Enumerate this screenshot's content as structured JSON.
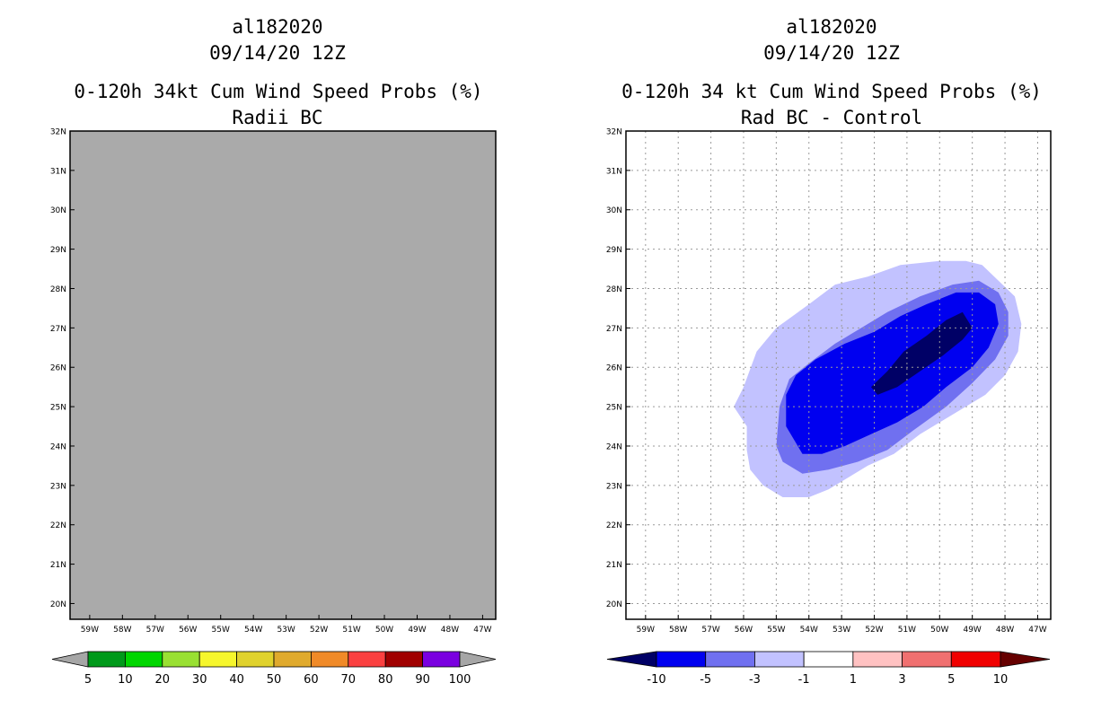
{
  "chart_data": [
    {
      "type": "map",
      "storm_id": "al182020",
      "datetime": "09/14/20 12Z",
      "title": "0-120h 34kt Cum Wind Speed Probs (%)",
      "subtitle": "Radii BC",
      "xlim": [
        -59.6,
        -46.6
      ],
      "ylim": [
        19.6,
        32
      ],
      "x_ticks": [
        {
          "lon": -59,
          "label": "59W"
        },
        {
          "lon": -58,
          "label": "58W"
        },
        {
          "lon": -57,
          "label": "57W"
        },
        {
          "lon": -56,
          "label": "56W"
        },
        {
          "lon": -55,
          "label": "55W"
        },
        {
          "lon": -54,
          "label": "54W"
        },
        {
          "lon": -53,
          "label": "53W"
        },
        {
          "lon": -52,
          "label": "52W"
        },
        {
          "lon": -51,
          "label": "51W"
        },
        {
          "lon": -50,
          "label": "50W"
        },
        {
          "lon": -49,
          "label": "49W"
        },
        {
          "lon": -48,
          "label": "48W"
        },
        {
          "lon": -47,
          "label": "47W"
        }
      ],
      "y_ticks": [
        {
          "lat": 20,
          "label": "20N"
        },
        {
          "lat": 21,
          "label": "21N"
        },
        {
          "lat": 22,
          "label": "22N"
        },
        {
          "lat": 23,
          "label": "23N"
        },
        {
          "lat": 24,
          "label": "24N"
        },
        {
          "lat": 25,
          "label": "25N"
        },
        {
          "lat": 26,
          "label": "26N"
        },
        {
          "lat": 27,
          "label": "27N"
        },
        {
          "lat": 28,
          "label": "28N"
        },
        {
          "lat": 29,
          "label": "29N"
        },
        {
          "lat": 30,
          "label": "30N"
        },
        {
          "lat": 31,
          "label": "31N"
        },
        {
          "lat": 32,
          "label": "32N"
        }
      ],
      "grid": false,
      "fill_color": "#aaaaaa",
      "colorbar": {
        "labels": [
          "5",
          "10",
          "20",
          "30",
          "40",
          "50",
          "60",
          "70",
          "80",
          "90",
          "100"
        ],
        "colors": [
          "#a6a6a6",
          "#00991a",
          "#00d600",
          "#99e032",
          "#f6f62c",
          "#e0d22d",
          "#e0aa2d",
          "#f08a28",
          "#fa4040",
          "#a00000",
          "#7a00e0",
          "#a6a6a6"
        ]
      }
    },
    {
      "type": "contour_map",
      "storm_id": "al182020",
      "datetime": "09/14/20 12Z",
      "title": "0-120h 34 kt Cum Wind Speed Probs (%)",
      "subtitle": "Rad BC - Control",
      "xlim": [
        -59.6,
        -46.6
      ],
      "ylim": [
        19.6,
        32
      ],
      "x_ticks": [
        {
          "lon": -59,
          "label": "59W"
        },
        {
          "lon": -58,
          "label": "58W"
        },
        {
          "lon": -57,
          "label": "57W"
        },
        {
          "lon": -56,
          "label": "56W"
        },
        {
          "lon": -55,
          "label": "55W"
        },
        {
          "lon": -54,
          "label": "54W"
        },
        {
          "lon": -53,
          "label": "53W"
        },
        {
          "lon": -52,
          "label": "52W"
        },
        {
          "lon": -51,
          "label": "51W"
        },
        {
          "lon": -50,
          "label": "50W"
        },
        {
          "lon": -49,
          "label": "49W"
        },
        {
          "lon": -48,
          "label": "48W"
        },
        {
          "lon": -47,
          "label": "47W"
        }
      ],
      "y_ticks": [
        {
          "lat": 20,
          "label": "20N"
        },
        {
          "lat": 21,
          "label": "21N"
        },
        {
          "lat": 22,
          "label": "22N"
        },
        {
          "lat": 23,
          "label": "23N"
        },
        {
          "lat": 24,
          "label": "24N"
        },
        {
          "lat": 25,
          "label": "25N"
        },
        {
          "lat": 26,
          "label": "26N"
        },
        {
          "lat": 27,
          "label": "27N"
        },
        {
          "lat": 28,
          "label": "28N"
        },
        {
          "lat": 29,
          "label": "29N"
        },
        {
          "lat": 30,
          "label": "30N"
        },
        {
          "lat": 31,
          "label": "31N"
        },
        {
          "lat": 32,
          "label": "32N"
        }
      ],
      "grid": true,
      "contours": [
        {
          "level": "-3 to -1",
          "color": "#c2c2ff",
          "points": [
            [
              -56.0,
              25.5
            ],
            [
              -55.6,
              26.4
            ],
            [
              -55.0,
              27.0
            ],
            [
              -54.0,
              27.6
            ],
            [
              -53.2,
              28.1
            ],
            [
              -52.2,
              28.3
            ],
            [
              -51.2,
              28.6
            ],
            [
              -50.0,
              28.7
            ],
            [
              -49.2,
              28.7
            ],
            [
              -48.7,
              28.6
            ],
            [
              -48.2,
              28.2
            ],
            [
              -47.7,
              27.8
            ],
            [
              -47.5,
              27.1
            ],
            [
              -47.6,
              26.4
            ],
            [
              -48.0,
              25.8
            ],
            [
              -48.6,
              25.3
            ],
            [
              -49.6,
              24.8
            ],
            [
              -50.6,
              24.3
            ],
            [
              -51.4,
              23.8
            ],
            [
              -52.2,
              23.5
            ],
            [
              -52.8,
              23.2
            ],
            [
              -53.4,
              22.9
            ],
            [
              -54.0,
              22.7
            ],
            [
              -54.8,
              22.7
            ],
            [
              -55.4,
              23.0
            ],
            [
              -55.8,
              23.4
            ],
            [
              -55.9,
              23.9
            ],
            [
              -55.9,
              24.5
            ],
            [
              -56.3,
              25.0
            ]
          ]
        },
        {
          "level": "-5 to -3",
          "color": "#7070f0",
          "points": [
            [
              -55.0,
              24.0
            ],
            [
              -54.9,
              25.0
            ],
            [
              -54.6,
              25.7
            ],
            [
              -54.0,
              26.1
            ],
            [
              -53.2,
              26.6
            ],
            [
              -52.4,
              27.0
            ],
            [
              -51.6,
              27.4
            ],
            [
              -50.6,
              27.8
            ],
            [
              -49.6,
              28.1
            ],
            [
              -48.8,
              28.2
            ],
            [
              -48.2,
              27.9
            ],
            [
              -47.9,
              27.4
            ],
            [
              -47.9,
              26.8
            ],
            [
              -48.3,
              26.2
            ],
            [
              -49.0,
              25.6
            ],
            [
              -49.8,
              25.0
            ],
            [
              -50.8,
              24.4
            ],
            [
              -51.6,
              23.9
            ],
            [
              -52.5,
              23.6
            ],
            [
              -53.4,
              23.4
            ],
            [
              -54.2,
              23.3
            ],
            [
              -54.8,
              23.6
            ]
          ]
        },
        {
          "level": "-10 to -5",
          "color": "#0000f0",
          "points": [
            [
              -54.7,
              24.5
            ],
            [
              -54.7,
              25.3
            ],
            [
              -54.4,
              25.8
            ],
            [
              -53.8,
              26.2
            ],
            [
              -52.9,
              26.6
            ],
            [
              -52.0,
              26.9
            ],
            [
              -51.2,
              27.3
            ],
            [
              -50.4,
              27.6
            ],
            [
              -49.5,
              27.9
            ],
            [
              -48.8,
              27.9
            ],
            [
              -48.3,
              27.6
            ],
            [
              -48.2,
              27.1
            ],
            [
              -48.5,
              26.5
            ],
            [
              -49.0,
              26.0
            ],
            [
              -49.8,
              25.5
            ],
            [
              -50.5,
              25.0
            ],
            [
              -51.3,
              24.6
            ],
            [
              -52.1,
              24.3
            ],
            [
              -52.9,
              24.0
            ],
            [
              -53.6,
              23.8
            ],
            [
              -54.2,
              23.8
            ]
          ]
        },
        {
          "level": "< -10",
          "color": "#000066",
          "points": [
            [
              -52.1,
              25.5
            ],
            [
              -51.6,
              25.9
            ],
            [
              -51.1,
              26.4
            ],
            [
              -50.4,
              26.8
            ],
            [
              -49.8,
              27.2
            ],
            [
              -49.3,
              27.4
            ],
            [
              -49.0,
              27.0
            ],
            [
              -49.3,
              26.7
            ],
            [
              -49.9,
              26.3
            ],
            [
              -50.6,
              25.9
            ],
            [
              -51.3,
              25.5
            ],
            [
              -51.9,
              25.3
            ]
          ]
        }
      ],
      "colorbar": {
        "labels": [
          "-10",
          "-5",
          "-3",
          "-1",
          "1",
          "3",
          "5",
          "10"
        ],
        "colors": [
          "#000066",
          "#0000f0",
          "#7070f0",
          "#c2c2ff",
          "#ffffff",
          "#ffc2c2",
          "#f07070",
          "#f00000",
          "#660000"
        ]
      }
    }
  ]
}
